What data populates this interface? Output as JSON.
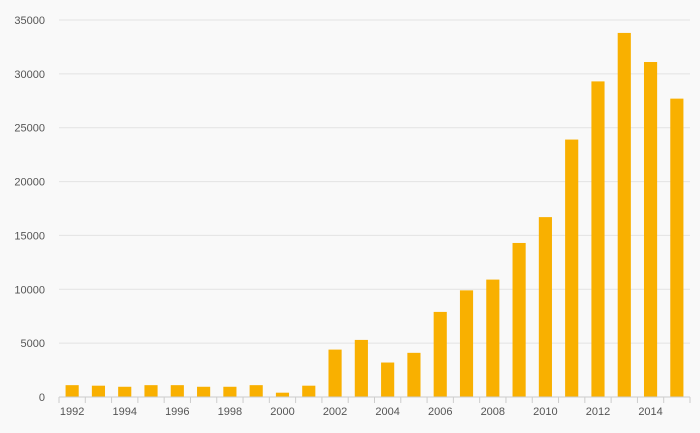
{
  "chart_data": {
    "type": "bar",
    "title": "",
    "xlabel": "",
    "ylabel": "",
    "categories": [
      "1992",
      "1993",
      "1994",
      "1995",
      "1996",
      "1997",
      "1998",
      "1999",
      "2000",
      "2001",
      "2002",
      "2003",
      "2004",
      "2005",
      "2006",
      "2007",
      "2008",
      "2009",
      "2010",
      "2011",
      "2012",
      "2013",
      "2014",
      "2015"
    ],
    "x_tick_labels": [
      "1992",
      "1994",
      "1996",
      "1998",
      "2000",
      "2002",
      "2004",
      "2006",
      "2008",
      "2010",
      "2012",
      "2014"
    ],
    "values": [
      1100,
      1050,
      950,
      1100,
      1100,
      950,
      950,
      1100,
      400,
      1050,
      4400,
      5300,
      3200,
      4100,
      7900,
      9900,
      10900,
      14300,
      16700,
      23900,
      29300,
      33800,
      31100,
      27700
    ],
    "ylim": [
      0,
      35000
    ],
    "y_ticks": [
      "0",
      "5000",
      "10000",
      "15000",
      "20000",
      "25000",
      "30000",
      "35000"
    ],
    "grid": true,
    "legend": "none",
    "colors": {
      "bar": "#f9b000",
      "grid": "#e3e3e3",
      "axis": "#cccccc",
      "text": "#555555",
      "background": "#f9f9f9"
    }
  }
}
